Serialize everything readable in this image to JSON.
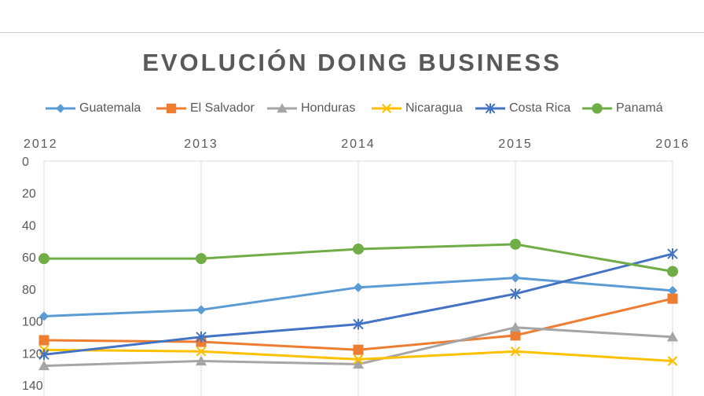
{
  "chart_data": {
    "type": "line",
    "title": "EVOLUCIÓN DOING BUSINESS",
    "x": [
      "2012",
      "2013",
      "2014",
      "2015",
      "2016"
    ],
    "ylim": [
      0,
      140
    ],
    "y_reversed": true,
    "yticks": [
      "0",
      "20",
      "40",
      "60",
      "80",
      "100",
      "120",
      "140"
    ],
    "grid": "vertical",
    "legend": "top",
    "series": [
      {
        "name": "Guatemala",
        "color": "#5b9bd5",
        "marker": "diamond",
        "values": [
          97,
          93,
          79,
          73,
          81
        ]
      },
      {
        "name": "El Salvador",
        "color": "#ed7d31",
        "marker": "square",
        "values": [
          112,
          113,
          118,
          109,
          86
        ]
      },
      {
        "name": "Honduras",
        "color": "#a5a5a5",
        "marker": "triangle",
        "values": [
          128,
          125,
          127,
          104,
          110
        ]
      },
      {
        "name": "Nicaragua",
        "color": "#ffc000",
        "marker": "x",
        "values": [
          118,
          119,
          124,
          119,
          125
        ]
      },
      {
        "name": "Costa Rica",
        "color": "#4472c4",
        "marker": "star",
        "values": [
          121,
          110,
          102,
          83,
          58
        ]
      },
      {
        "name": "Panamá",
        "color": "#70ad47",
        "marker": "circle",
        "values": [
          61,
          61,
          55,
          52,
          69
        ]
      }
    ]
  }
}
